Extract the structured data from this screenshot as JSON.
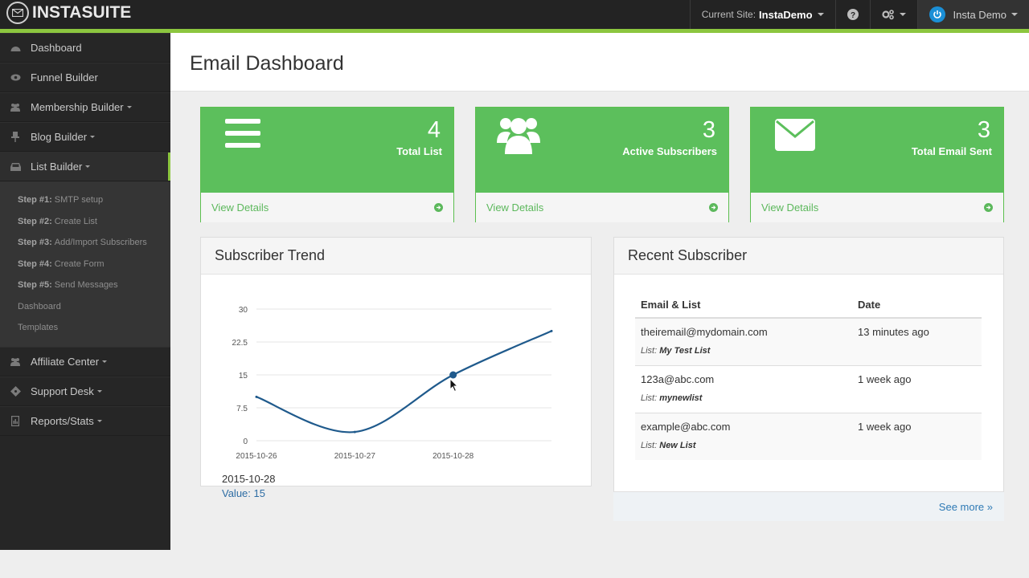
{
  "app": {
    "logo_text_1": "INSTA",
    "logo_text_2": "SUITE"
  },
  "topbar": {
    "site_label": "Current Site:",
    "site_name": "InstaDemo",
    "user_name": "Insta Demo",
    "icons": [
      "question-circle-icon",
      "cogs-icon",
      "power-icon"
    ]
  },
  "sidebar": {
    "items": [
      {
        "label": "Dashboard",
        "icon": "tachometer-icon"
      },
      {
        "label": "Funnel Builder",
        "icon": "eye-icon"
      },
      {
        "label": "Membership Builder",
        "icon": "users-icon"
      },
      {
        "label": "Blog Builder",
        "icon": "thumbtack-icon"
      },
      {
        "label": "List Builder",
        "icon": "inbox-icon"
      }
    ],
    "sub_items": [
      {
        "step": "Step #1:",
        "label": "SMTP setup"
      },
      {
        "step": "Step #2:",
        "label": "Create List"
      },
      {
        "step": "Step #3:",
        "label": "Add/Import Subscribers"
      },
      {
        "step": "Step #4:",
        "label": "Create Form"
      },
      {
        "step": "Step #5:",
        "label": "Send Messages"
      },
      {
        "step": "",
        "label": "Dashboard"
      },
      {
        "step": "",
        "label": "Templates"
      }
    ],
    "items_after": [
      {
        "label": "Affiliate Center",
        "icon": "users-icon"
      },
      {
        "label": "Support Desk",
        "icon": "ticket-icon"
      },
      {
        "label": "Reports/Stats",
        "icon": "file-chart-icon"
      }
    ]
  },
  "page": {
    "title": "Email Dashboard"
  },
  "stats": [
    {
      "value": "4",
      "label": "Total List",
      "link": "View Details",
      "icon": "list-icon"
    },
    {
      "value": "3",
      "label": "Active Subscribers",
      "link": "View Details",
      "icon": "users-icon"
    },
    {
      "value": "3",
      "label": "Total Email Sent",
      "link": "View Details",
      "icon": "envelope-icon"
    }
  ],
  "trend": {
    "title": "Subscriber Trend",
    "tooltip_date": "2015-10-28",
    "tooltip_value": "Value: 15"
  },
  "chart_data": {
    "type": "line",
    "x": [
      "2015-10-26",
      "2015-10-27",
      "2015-10-28",
      "2015-10-29"
    ],
    "x_tick_labels": [
      "2015-10-26",
      "2015-10-27",
      "2015-10-28"
    ],
    "values": [
      10,
      2,
      15,
      25
    ],
    "ylim": [
      0,
      30
    ],
    "y_ticks": [
      "0",
      "7.5",
      "15",
      "22.5",
      "30"
    ],
    "grid": true,
    "line_color": "#1f5a8c"
  },
  "recent": {
    "title": "Recent Subscriber",
    "headers": [
      "Email & List",
      "Date"
    ],
    "list_prefix": "List:",
    "rows": [
      {
        "email": "theiremail@mydomain.com",
        "list": "My Test List",
        "date": "13 minutes ago"
      },
      {
        "email": "123a@abc.com",
        "list": "mynewlist",
        "date": "1 week ago"
      },
      {
        "email": "example@abc.com",
        "list": "New List",
        "date": "1 week ago"
      }
    ],
    "see_more": "See more »"
  },
  "colors": {
    "accent": "#8cc63f",
    "card_green": "#5cbf5c",
    "link_blue": "#2e7ab5"
  }
}
